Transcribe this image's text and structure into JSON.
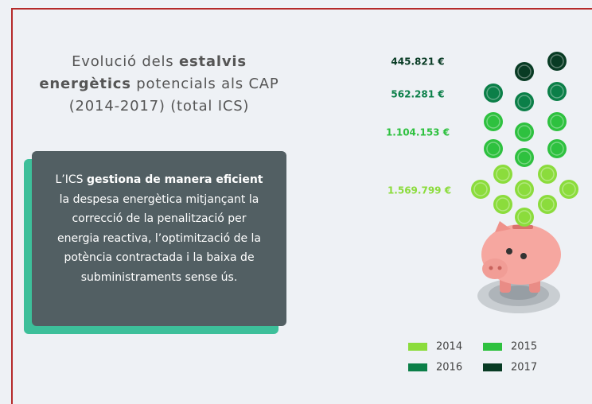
{
  "chart_data": {
    "type": "pictorial",
    "title_parts": [
      {
        "text": "Evolució dels ",
        "bold": false
      },
      {
        "text": "estalvis energètics",
        "bold": true
      },
      {
        "text": " potencials als CAP (2014-2017) (total ICS)",
        "bold": false
      }
    ],
    "note_parts": [
      {
        "text": "L’ICS ",
        "bold": false
      },
      {
        "text": "gestiona de manera eficient",
        "bold": true
      },
      {
        "text": " la despesa energètica mitjançant la correcció de la penalització per energia reactiva, l’optimització de la potència contractada i la baixa de subministraments sense ús.",
        "bold": false
      }
    ],
    "series": [
      {
        "name": "2014",
        "color": "#8bdc3c",
        "values": [
          1569799
        ],
        "value_labels": [
          "1.569.799 €"
        ]
      },
      {
        "name": "2015",
        "color": "#2ec13f",
        "values": [
          1104153
        ],
        "value_labels": [
          "1.104.153 €"
        ]
      },
      {
        "name": "2016",
        "color": "#0b7f48",
        "values": [
          562281
        ],
        "value_labels": [
          "562.281 €"
        ]
      },
      {
        "name": "2017",
        "color": "#083b24",
        "values": [
          445821
        ],
        "value_labels": [
          "445.821 €"
        ]
      }
    ]
  }
}
